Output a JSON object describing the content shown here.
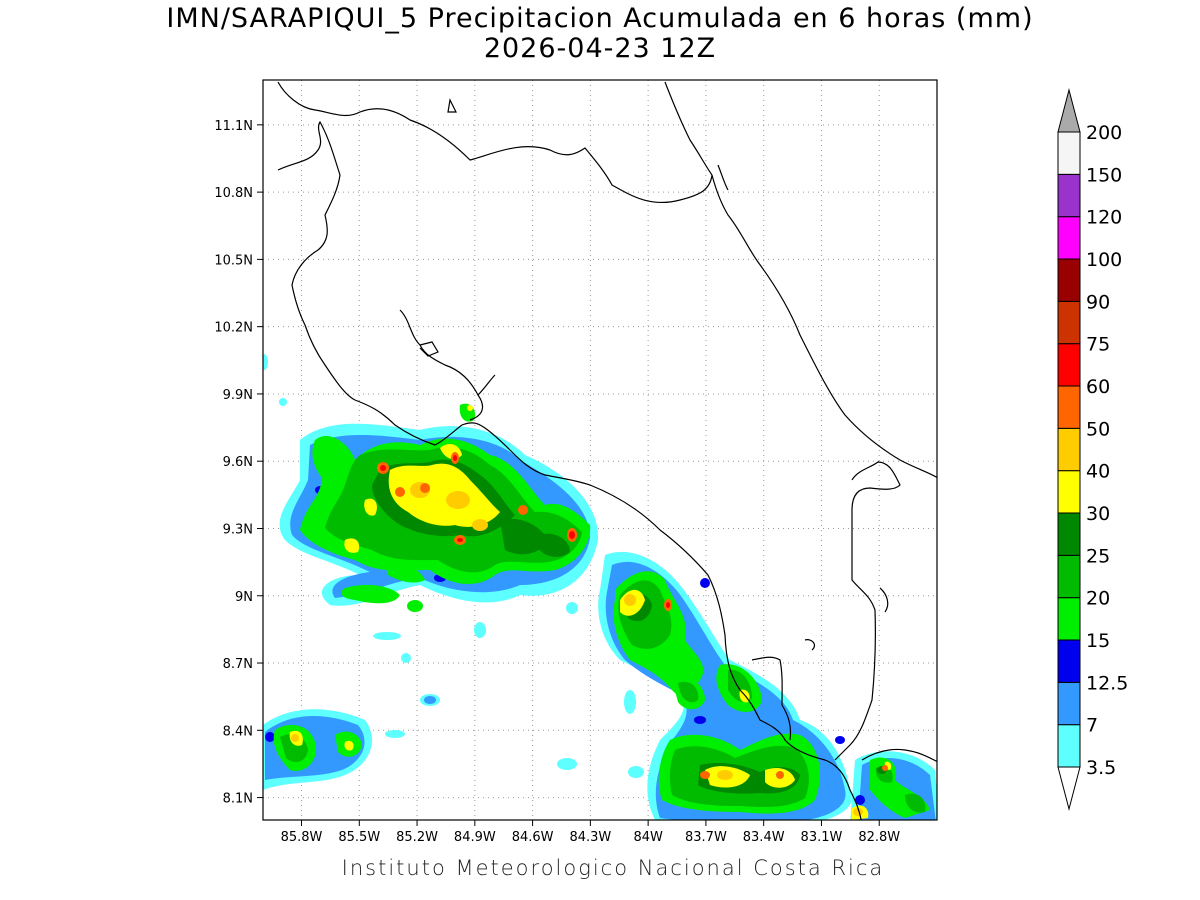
{
  "title": "IMN/SARAPIQUI_5 Precipitacion Acumulada en 6 horas (mm)",
  "subtitle": "2026-04-23 12Z",
  "footer": "Instituto Meteorologico Nacional Costa Rica",
  "map": {
    "lon_range": [
      -86.0,
      -82.5
    ],
    "lat_range": [
      8.0,
      11.3
    ],
    "lon_ticks": [
      {
        "value": -85.8,
        "label": "85.8W"
      },
      {
        "value": -85.5,
        "label": "85.5W"
      },
      {
        "value": -85.2,
        "label": "85.2W"
      },
      {
        "value": -84.9,
        "label": "84.9W"
      },
      {
        "value": -84.6,
        "label": "84.6W"
      },
      {
        "value": -84.3,
        "label": "84.3W"
      },
      {
        "value": -84.0,
        "label": "84W"
      },
      {
        "value": -83.7,
        "label": "83.7W"
      },
      {
        "value": -83.4,
        "label": "83.4W"
      },
      {
        "value": -83.1,
        "label": "83.1W"
      },
      {
        "value": -82.8,
        "label": "82.8W"
      }
    ],
    "lat_ticks": [
      {
        "value": 11.1,
        "label": "11.1N"
      },
      {
        "value": 10.8,
        "label": "10.8N"
      },
      {
        "value": 10.5,
        "label": "10.5N"
      },
      {
        "value": 10.2,
        "label": "10.2N"
      },
      {
        "value": 9.9,
        "label": "9.9N"
      },
      {
        "value": 9.6,
        "label": "9.6N"
      },
      {
        "value": 9.3,
        "label": "9.3N"
      },
      {
        "value": 9.0,
        "label": "9N"
      },
      {
        "value": 8.7,
        "label": "8.7N"
      },
      {
        "value": 8.4,
        "label": "8.4N"
      },
      {
        "value": 8.1,
        "label": "8.1N"
      }
    ],
    "grid": true
  },
  "colorbar": {
    "labels": [
      "3.5",
      "7",
      "12.5",
      "15",
      "20",
      "25",
      "30",
      "40",
      "50",
      "60",
      "75",
      "90",
      "100",
      "120",
      "150",
      "200"
    ],
    "colors": [
      "#5dffff",
      "#3399ff",
      "#0000ee",
      "#00ee00",
      "#00bb00",
      "#008800",
      "#ffff00",
      "#ffcc00",
      "#ff6600",
      "#ff0000",
      "#cc3300",
      "#990000",
      "#ff00ff",
      "#9933cc",
      "#f5f5f5"
    ],
    "over_color": "#aaaaaa",
    "under_color": "#ffffff"
  }
}
